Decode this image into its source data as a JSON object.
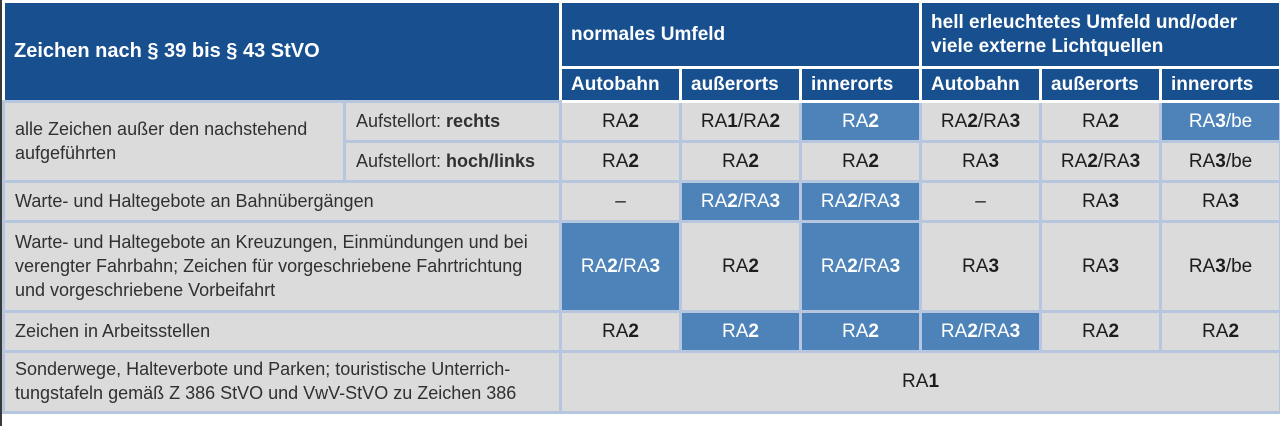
{
  "palette": {
    "header_bg": "#174f8f",
    "header_text": "#ffffff",
    "header_sep": "#ffffff",
    "highlight_bg": "#4d83b8",
    "cell_bg": "#dbdbdb",
    "grid": "#b5c6de",
    "text": "#303030",
    "value_text": "#1d1d1d"
  },
  "header": {
    "title": "Zeichen nach § 39 bis § 43 StVO",
    "group1": "normales Umfeld",
    "group2": "hell erleuchtetes Umfeld und/oder viele externe Lichtquellen",
    "columns": [
      "Autobahn",
      "außerorts",
      "innerorts",
      "Autobahn",
      "außerorts",
      "innerorts"
    ]
  },
  "rows": [
    {
      "label": "alle Zeichen außer den nachstehend aufgeführten",
      "sub": [
        {
          "prefix": "Aufstellort: ",
          "bold": "rechts",
          "cells": [
            {
              "v": "RA2"
            },
            {
              "v": "RA1/RA2"
            },
            {
              "v": "RA2",
              "hl": true
            },
            {
              "v": "RA2/RA3"
            },
            {
              "v": "RA2"
            },
            {
              "v": "RA3/be",
              "hl": true
            }
          ]
        },
        {
          "prefix": "Aufstellort: ",
          "bold": "hoch/links",
          "cells": [
            {
              "v": "RA2"
            },
            {
              "v": "RA2"
            },
            {
              "v": "RA2"
            },
            {
              "v": "RA3"
            },
            {
              "v": "RA2/RA3"
            },
            {
              "v": "RA3/be"
            }
          ]
        }
      ]
    },
    {
      "label": "Warte- und Haltegebote an Bahnübergängen",
      "cells": [
        {
          "v": "–"
        },
        {
          "v": "RA2/RA3",
          "hl": true
        },
        {
          "v": "RA2/RA3",
          "hl": true
        },
        {
          "v": "–"
        },
        {
          "v": "RA3"
        },
        {
          "v": "RA3"
        }
      ]
    },
    {
      "label": "Warte- und Haltegebote an Kreuzungen, Einmündungen und bei verengter Fahrbahn; Zeichen für vorgeschriebene Fahrtrichtung und vorgeschriebene Vorbeifahrt",
      "cells": [
        {
          "v": "RA2/RA3",
          "hl": true
        },
        {
          "v": "RA2"
        },
        {
          "v": "RA2/RA3",
          "hl": true
        },
        {
          "v": "RA3"
        },
        {
          "v": "RA3"
        },
        {
          "v": "RA3/be"
        }
      ]
    },
    {
      "label": "Zeichen in Arbeitsstellen",
      "cells": [
        {
          "v": "RA2"
        },
        {
          "v": "RA2",
          "hl": true
        },
        {
          "v": "RA2",
          "hl": true
        },
        {
          "v": "RA2/RA3",
          "hl": true
        },
        {
          "v": "RA2"
        },
        {
          "v": "RA2"
        }
      ]
    },
    {
      "label": "Sonderwege, Halteverbote und Parken; touristische Unterrich-tungstafeln gemäß Z 386 StVO und VwV-StVO zu Zeichen 386",
      "merged": {
        "v": "RA1"
      }
    }
  ]
}
